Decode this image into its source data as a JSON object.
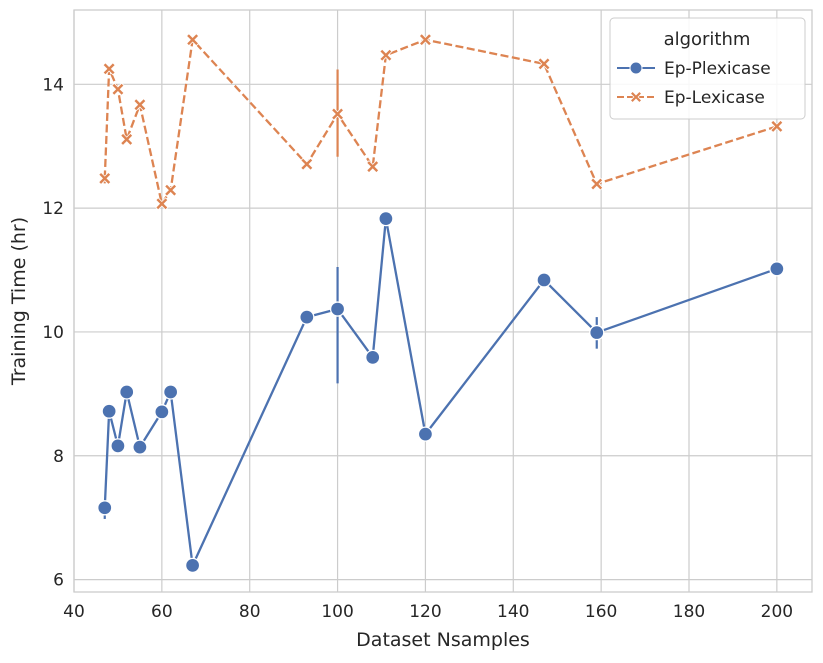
{
  "chart_data": {
    "type": "line",
    "xlabel": "Dataset Nsamples",
    "ylabel": "Training Time (hr)",
    "xlim": [
      40,
      208
    ],
    "ylim": [
      5.8,
      15.2
    ],
    "xticks": [
      40,
      60,
      80,
      100,
      120,
      140,
      160,
      180,
      200
    ],
    "yticks": [
      6,
      8,
      10,
      12,
      14
    ],
    "grid": true,
    "legend": {
      "title": "algorithm",
      "placement": "top-right"
    },
    "series": [
      {
        "name": "Ep-Plexicase",
        "color": "#4c72b0",
        "line_style": "solid",
        "marker": "circle",
        "points": [
          {
            "x": 47,
            "y": 7.16,
            "err": [
              6.98,
              7.22
            ]
          },
          {
            "x": 48,
            "y": 8.72
          },
          {
            "x": 50,
            "y": 8.16
          },
          {
            "x": 52,
            "y": 9.03
          },
          {
            "x": 55,
            "y": 8.14
          },
          {
            "x": 60,
            "y": 8.71
          },
          {
            "x": 62,
            "y": 9.03
          },
          {
            "x": 67,
            "y": 6.23
          },
          {
            "x": 93,
            "y": 10.24
          },
          {
            "x": 100,
            "y": 10.37,
            "err": [
              9.17,
              11.05
            ]
          },
          {
            "x": 108,
            "y": 9.59
          },
          {
            "x": 111,
            "y": 11.83
          },
          {
            "x": 120,
            "y": 8.35
          },
          {
            "x": 147,
            "y": 10.84
          },
          {
            "x": 159,
            "y": 9.99,
            "err": [
              9.73,
              10.24
            ]
          },
          {
            "x": 200,
            "y": 11.02
          }
        ]
      },
      {
        "name": "Ep-Lexicase",
        "color": "#dd8452",
        "line_style": "dashed",
        "marker": "x",
        "points": [
          {
            "x": 47,
            "y": 12.48,
            "err": [
              12.4,
              12.55
            ]
          },
          {
            "x": 48,
            "y": 14.25
          },
          {
            "x": 50,
            "y": 13.92
          },
          {
            "x": 52,
            "y": 13.11
          },
          {
            "x": 55,
            "y": 13.67
          },
          {
            "x": 60,
            "y": 12.07
          },
          {
            "x": 62,
            "y": 12.29
          },
          {
            "x": 67,
            "y": 14.72
          },
          {
            "x": 93,
            "y": 12.71
          },
          {
            "x": 100,
            "y": 13.52,
            "err": [
              12.83,
              14.24
            ]
          },
          {
            "x": 108,
            "y": 12.67
          },
          {
            "x": 111,
            "y": 14.47
          },
          {
            "x": 120,
            "y": 14.72
          },
          {
            "x": 147,
            "y": 14.33
          },
          {
            "x": 159,
            "y": 12.39
          },
          {
            "x": 200,
            "y": 13.32
          }
        ]
      }
    ]
  }
}
